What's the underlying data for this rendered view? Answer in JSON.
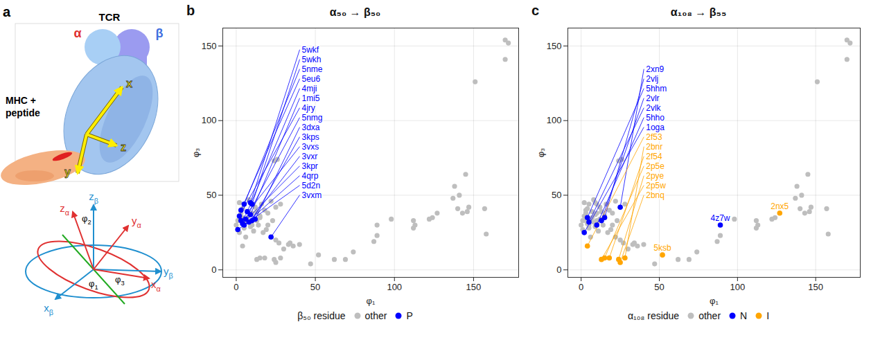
{
  "diagram": {
    "letter": "a",
    "structure": {
      "complex": "TCR",
      "alpha": "α",
      "beta": "β",
      "ligand": [
        "MHC +",
        "peptide"
      ],
      "axes": [
        "x",
        "y",
        "z"
      ]
    },
    "rotation": {
      "beta_axes": [
        {
          "axis": "z",
          "sub": "β"
        },
        {
          "axis": "y",
          "sub": "β"
        },
        {
          "axis": "x",
          "sub": "β"
        }
      ],
      "alpha_axes": [
        {
          "axis": "z",
          "sub": "α"
        },
        {
          "axis": "y",
          "sub": "α"
        },
        {
          "axis": "x",
          "sub": "α"
        }
      ],
      "angles": [
        {
          "symbol": "φ",
          "sub": "1"
        },
        {
          "symbol": "φ",
          "sub": "2"
        },
        {
          "symbol": "φ",
          "sub": "3"
        }
      ]
    }
  },
  "chart_data": [
    {
      "letter": "b",
      "type": "scatter",
      "title": "α₅₀ → β₅₀",
      "x_label": "φ₁",
      "y_label": "φ₃",
      "xlim": [
        -8.5,
        178.5
      ],
      "ylim": [
        -5,
        162
      ],
      "xticks": [
        0,
        50,
        100,
        150
      ],
      "yticks": [
        0,
        50,
        100,
        150
      ],
      "grid": true,
      "legend": "bottom",
      "legend_title": "β₅₀ residue",
      "series": [
        {
          "name": "other",
          "color": "#bebebe",
          "points": [
            [
              170,
              154
            ],
            [
              172,
              152
            ],
            [
              170,
              141
            ],
            [
              151,
              126
            ],
            [
              145,
              64
            ],
            [
              138,
              56
            ],
            [
              141,
              50
            ],
            [
              137,
              48
            ],
            [
              147,
              42
            ],
            [
              140,
              41
            ],
            [
              143,
              38
            ],
            [
              157,
              41
            ],
            [
              158,
              24
            ],
            [
              146,
              39
            ],
            [
              112,
              33
            ],
            [
              113,
              30
            ],
            [
              124,
              35
            ],
            [
              122,
              34
            ],
            [
              112,
              28
            ],
            [
              98,
              34
            ],
            [
              89,
              23
            ],
            [
              87,
              19
            ],
            [
              74,
              12
            ],
            [
              69,
              7
            ],
            [
              62,
              7
            ],
            [
              47,
              4
            ],
            [
              36,
              16
            ],
            [
              33,
              17
            ],
            [
              27,
              18
            ],
            [
              40,
              17
            ],
            [
              30,
              14
            ],
            [
              34,
              18
            ],
            [
              26,
              74
            ],
            [
              24,
              73
            ],
            [
              28,
              44
            ],
            [
              22,
              46
            ],
            [
              18,
              40
            ],
            [
              15,
              36
            ],
            [
              10,
              38
            ],
            [
              20,
              30
            ],
            [
              5,
              28
            ],
            [
              12,
              42
            ],
            [
              2,
              45
            ],
            [
              8,
              47
            ],
            [
              14,
              30
            ],
            [
              17,
              25
            ],
            [
              6,
              22
            ],
            [
              3,
              38
            ],
            [
              11,
              26
            ],
            [
              20,
              38
            ],
            [
              1,
              33
            ],
            [
              16,
              44
            ],
            [
              9,
              29
            ],
            [
              4,
              41
            ],
            [
              23,
              33
            ],
            [
              13,
              39
            ],
            [
              7,
              35
            ],
            [
              19,
              27
            ],
            [
              0,
              30
            ],
            [
              25,
              20
            ],
            [
              25,
              42
            ],
            [
              15,
              35
            ],
            [
              13,
              33
            ],
            [
              4,
              35
            ],
            [
              10,
              30
            ],
            [
              5,
              32
            ],
            [
              2,
              25
            ],
            [
              89,
              30
            ],
            [
              127,
              38
            ],
            [
              52,
              10
            ],
            [
              28,
              8
            ],
            [
              25,
              5
            ],
            [
              24,
              7
            ],
            [
              18,
              8
            ],
            [
              15,
              8
            ],
            [
              13,
              7
            ],
            [
              4,
              16
            ]
          ]
        },
        {
          "name": "P",
          "color": "#0000ff",
          "points": [
            [
              10,
              44
            ],
            [
              5,
              44
            ],
            [
              9,
              45
            ],
            [
              3,
              40
            ],
            [
              7,
              39
            ],
            [
              9,
              37
            ],
            [
              2,
              36
            ],
            [
              6,
              34
            ],
            [
              10,
              33
            ],
            [
              4,
              31
            ],
            [
              8,
              32
            ],
            [
              12,
              34
            ],
            [
              1,
              27
            ],
            [
              3,
              33
            ],
            [
              5,
              30
            ],
            [
              22,
              22
            ]
          ],
          "labels": [
            "5wkh",
            "5nme",
            "5wkf",
            "5eu6",
            "4mji",
            "1mi5",
            "4jry",
            "5nmg",
            "3kps",
            "3kpr",
            "3vxr",
            "3dxa",
            "5d2n",
            "3vxs",
            "4qrp",
            "3vxm"
          ]
        }
      ]
    },
    {
      "letter": "c",
      "type": "scatter",
      "title": "α₁₀₈ → β₅₅",
      "x_label": "φ₁",
      "y_label": "φ₃",
      "xlim": [
        -8.5,
        178.5
      ],
      "ylim": [
        -5,
        162
      ],
      "xticks": [
        0,
        50,
        100,
        150
      ],
      "yticks": [
        0,
        50,
        100,
        150
      ],
      "grid": true,
      "legend": "bottom",
      "legend_title": "α₁₀₈ residue",
      "series": [
        {
          "name": "other",
          "color": "#bebebe",
          "points": [
            [
              170,
              154
            ],
            [
              172,
              152
            ],
            [
              170,
              141
            ],
            [
              151,
              126
            ],
            [
              145,
              64
            ],
            [
              138,
              56
            ],
            [
              141,
              50
            ],
            [
              137,
              48
            ],
            [
              147,
              42
            ],
            [
              140,
              41
            ],
            [
              143,
              38
            ],
            [
              157,
              41
            ],
            [
              158,
              24
            ],
            [
              146,
              39
            ],
            [
              112,
              33
            ],
            [
              113,
              30
            ],
            [
              124,
              35
            ],
            [
              122,
              34
            ],
            [
              112,
              28
            ],
            [
              98,
              34
            ],
            [
              89,
              23
            ],
            [
              87,
              19
            ],
            [
              74,
              12
            ],
            [
              69,
              7
            ],
            [
              62,
              7
            ],
            [
              47,
              4
            ],
            [
              36,
              16
            ],
            [
              33,
              17
            ],
            [
              27,
              18
            ],
            [
              40,
              17
            ],
            [
              30,
              14
            ],
            [
              34,
              18
            ],
            [
              26,
              74
            ],
            [
              24,
              73
            ],
            [
              28,
              44
            ],
            [
              22,
              46
            ],
            [
              18,
              40
            ],
            [
              15,
              36
            ],
            [
              10,
              38
            ],
            [
              20,
              30
            ],
            [
              5,
              28
            ],
            [
              12,
              42
            ],
            [
              2,
              45
            ],
            [
              8,
              47
            ],
            [
              14,
              30
            ],
            [
              17,
              25
            ],
            [
              6,
              22
            ],
            [
              3,
              38
            ],
            [
              11,
              26
            ],
            [
              20,
              38
            ],
            [
              1,
              33
            ],
            [
              16,
              44
            ],
            [
              9,
              29
            ],
            [
              4,
              41
            ],
            [
              23,
              33
            ],
            [
              13,
              39
            ],
            [
              7,
              35
            ],
            [
              19,
              27
            ],
            [
              0,
              30
            ],
            [
              25,
              20
            ],
            [
              10,
              44
            ],
            [
              5,
              44
            ],
            [
              9,
              45
            ],
            [
              3,
              40
            ],
            [
              7,
              39
            ],
            [
              9,
              37
            ],
            [
              2,
              36
            ],
            [
              6,
              34
            ],
            [
              10,
              33
            ],
            [
              4,
              31
            ],
            [
              8,
              32
            ],
            [
              12,
              34
            ],
            [
              1,
              27
            ],
            [
              3,
              33
            ],
            [
              5,
              30
            ],
            [
              22,
              22
            ]
          ]
        },
        {
          "name": "N",
          "color": "#0000ff",
          "points": [
            [
              25,
              42
            ],
            [
              15,
              35
            ],
            [
              13,
              33
            ],
            [
              4,
              35
            ],
            [
              10,
              30
            ],
            [
              5,
              32
            ],
            [
              2,
              25
            ],
            [
              89,
              30
            ]
          ],
          "labels": [
            "2xn9",
            "2vlj",
            "2vlr",
            "5hhm",
            "5hho",
            "2vlk",
            "1oga",
            "4z7w"
          ]
        },
        {
          "name": "I",
          "color": "#ffa500",
          "points": [
            [
              127,
              38
            ],
            [
              52,
              10
            ],
            [
              28,
              8
            ],
            [
              25,
              5
            ],
            [
              24,
              7
            ],
            [
              18,
              8
            ],
            [
              15,
              8
            ],
            [
              13,
              7
            ],
            [
              4,
              16
            ]
          ],
          "labels": [
            "2nx5",
            "5ksb",
            "2bnr",
            "2bnq",
            "2pye",
            "2f54",
            "2p5e",
            "2p5w",
            "2f53"
          ]
        }
      ]
    }
  ]
}
